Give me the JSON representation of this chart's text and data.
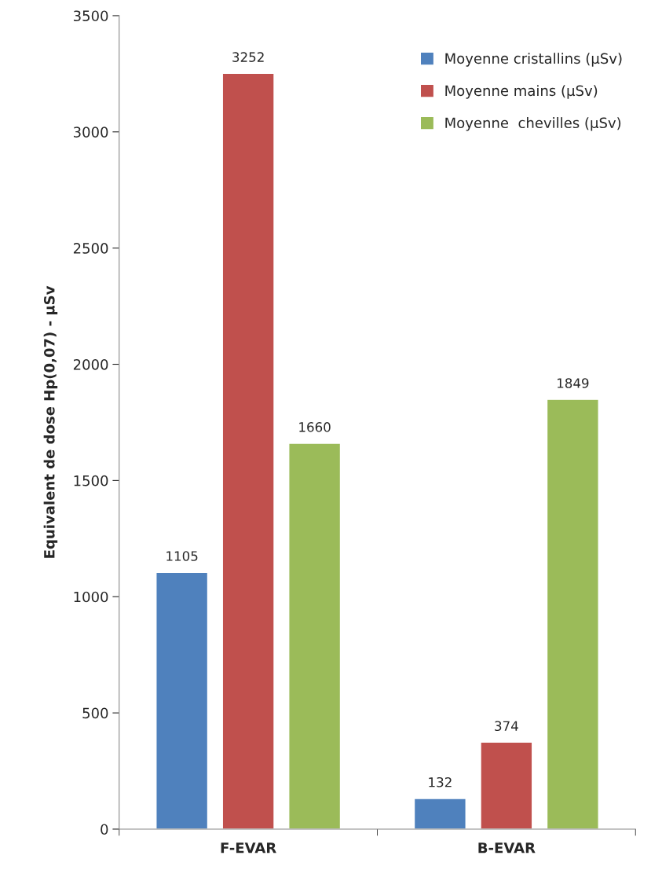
{
  "chart_data": {
    "type": "bar",
    "ylabel": "Equivalent de dose Hp(0,07) - µSv",
    "categories": [
      "F-EVAR",
      "B-EVAR"
    ],
    "series": [
      {
        "name": "Moyenne cristallins (µSv)",
        "color": "#4f81bd",
        "values": [
          1105,
          132
        ]
      },
      {
        "name": "Moyenne mains (µSv)",
        "color": "#c0504d",
        "values": [
          3252,
          374
        ]
      },
      {
        "name": "Moyenne  chevilles (µSv)",
        "color": "#9bbb59",
        "values": [
          1660,
          1849
        ]
      }
    ],
    "ylim": [
      0,
      3500
    ],
    "yticks": [
      0,
      500,
      1000,
      1500,
      2000,
      2500,
      3000,
      3500
    ],
    "data_labels": true,
    "legend": "top right",
    "grid": false
  }
}
